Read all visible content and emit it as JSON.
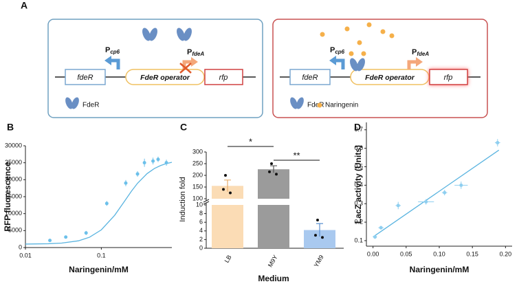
{
  "panel_labels": [
    "A",
    "B",
    "C",
    "D"
  ],
  "diagram": {
    "left": {
      "gene": "fdeR",
      "promoter_1": {
        "main": "P",
        "sub": "cp6"
      },
      "operator": "FdeR operator",
      "promoter_2": {
        "main": "P",
        "sub": "fdeA"
      },
      "reporter": "rfp",
      "legend": [
        "FdeR"
      ]
    },
    "right": {
      "gene": "fdeR",
      "promoter_1": {
        "main": "P",
        "sub": "cp6"
      },
      "operator": "FdeR operator",
      "promoter_2": {
        "main": "P",
        "sub": "fdeA"
      },
      "reporter": "rfp",
      "legend": [
        "FdeR",
        "Naringenin"
      ]
    }
  },
  "chart_data": [
    {
      "type": "scatter",
      "x_scale": "log",
      "xlabel": "Naringenin/mM",
      "ylabel": "RFP fluorescence",
      "xlim": [
        0.01,
        0.85
      ],
      "xticks": [
        0.01,
        0.1
      ],
      "ylim": [
        0,
        30000
      ],
      "yticks": [
        0,
        5000,
        10000,
        15000,
        20000,
        25000,
        30000
      ],
      "series": [
        {
          "color": "#6cc0ea",
          "x": [
            0.021,
            0.034,
            0.063,
            0.118,
            0.21,
            0.3,
            0.37,
            0.48,
            0.56,
            0.72
          ],
          "values": [
            2100,
            3100,
            4300,
            13000,
            19000,
            21700,
            25000,
            25500,
            26000,
            25000
          ],
          "errors": [
            300,
            400,
            600,
            700,
            900,
            800,
            1200,
            1000,
            800,
            900
          ]
        }
      ],
      "fit": {
        "color": "#5ab4e0",
        "x": [
          0.01,
          0.02,
          0.03,
          0.05,
          0.07,
          0.1,
          0.15,
          0.2,
          0.25,
          0.3,
          0.4,
          0.5,
          0.6,
          0.7,
          0.85
        ],
        "values": [
          1025,
          1125,
          1315,
          1990,
          3050,
          5220,
          9520,
          13500,
          16650,
          18950,
          21780,
          23300,
          24150,
          24680,
          25130
        ]
      }
    },
    {
      "type": "bar",
      "xlabel": "Medium",
      "ylabel": "Induction fold",
      "categories": [
        "LB",
        "M9Y",
        "YM9"
      ],
      "values": [
        155,
        226,
        4.2
      ],
      "errors": [
        25,
        15,
        1.5
      ],
      "colors": [
        "#fbdcb5",
        "#9b9b9b",
        "#a9c9ef"
      ],
      "error_colors": [
        "#e9ae6c",
        "#555555",
        "#5a90d0"
      ],
      "points": [
        [
          200,
          140,
          125
        ],
        [
          250,
          215,
          205
        ],
        [
          6.5,
          3,
          2.5
        ]
      ],
      "ylim": [
        0,
        300
      ],
      "y_break": [
        10,
        100
      ],
      "yticks": [
        0,
        2,
        4,
        6,
        8,
        10,
        100,
        150,
        200,
        250,
        300
      ],
      "significance": [
        {
          "pair": [
            "LB",
            "M9Y"
          ],
          "label": "*"
        },
        {
          "pair": [
            "M9Y",
            "YM9"
          ],
          "label": "**"
        }
      ]
    },
    {
      "type": "scatter",
      "xlabel": "Naringenin/mM",
      "ylabel": "LacZ activity (Units)",
      "xlim": [
        -0.01,
        0.21
      ],
      "xticks": [
        {
          "value": 0,
          "label": "0.00"
        },
        {
          "value": 0.05,
          "label": "0.05"
        },
        {
          "value": 0.1,
          "label": "0.10"
        },
        {
          "value": 0.15,
          "label": "0.15"
        },
        {
          "value": 0.2,
          "label": "0.20"
        }
      ],
      "ylim": [
        0.07,
        0.74
      ],
      "yticks": [
        0.1,
        0.2,
        0.3,
        0.4,
        0.5,
        0.6,
        0.7
      ],
      "series": [
        {
          "color": "#8fcff0",
          "x": [
            0.003,
            0.012,
            0.038,
            0.08,
            0.108,
            0.133,
            0.188
          ],
          "values": [
            0.12,
            0.17,
            0.29,
            0.31,
            0.36,
            0.4,
            0.63
          ],
          "x_errors": [
            0.003,
            0.004,
            0.004,
            0.012,
            0.004,
            0.01,
            0.004
          ],
          "errors": [
            0.01,
            0.01,
            0.02,
            0.015,
            0.015,
            0.02,
            0.02
          ]
        }
      ],
      "fit": {
        "color": "#5ab4e0",
        "x": [
          0,
          0.19
        ],
        "values": [
          0.12,
          0.59
        ]
      }
    }
  ]
}
